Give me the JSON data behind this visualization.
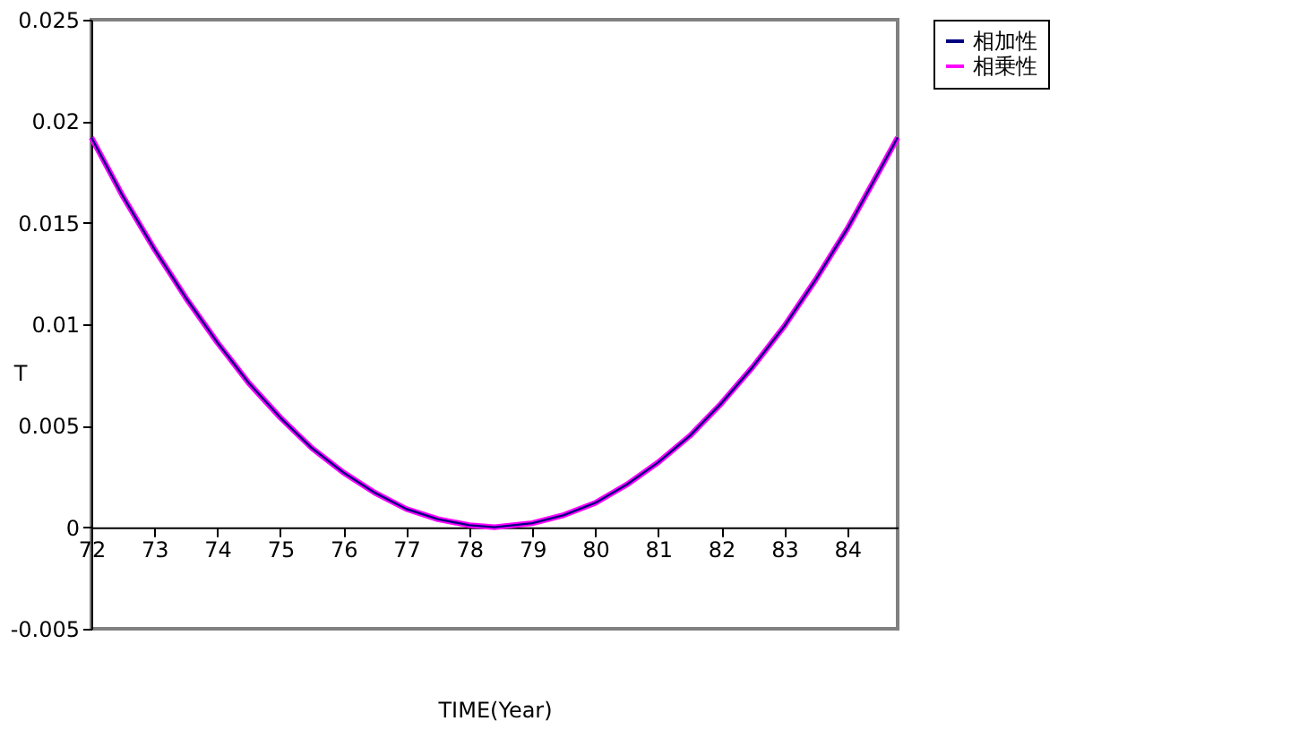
{
  "chart_data": {
    "type": "line",
    "xlabel": "TIME(Year)",
    "ylabel": "T",
    "x": [
      72,
      72.5,
      73,
      73.5,
      74,
      74.5,
      75,
      75.5,
      76,
      76.5,
      77,
      77.5,
      78,
      78.4,
      79,
      79.5,
      80,
      80.5,
      81,
      81.5,
      82,
      82.5,
      83,
      83.5,
      84,
      84.5,
      84.8
    ],
    "series": [
      {
        "name": "相加性",
        "color": "#000080",
        "values": [
          0.0192,
          0.0163,
          0.0137,
          0.0113,
          0.0091,
          0.0071,
          0.0054,
          0.0039,
          0.0027,
          0.0017,
          0.0009,
          0.0004,
          0.0001,
          0,
          0.0002,
          0.0006,
          0.0012,
          0.0021,
          0.0032,
          0.0045,
          0.0061,
          0.0079,
          0.0099,
          0.0122,
          0.0147,
          0.0175,
          0.0192
        ]
      },
      {
        "name": "相乗性",
        "color": "#ff00ff",
        "values": [
          0.0192,
          0.0163,
          0.0137,
          0.0113,
          0.0091,
          0.0071,
          0.0054,
          0.0039,
          0.0027,
          0.0017,
          0.0009,
          0.0004,
          0.0001,
          0,
          0.0002,
          0.0006,
          0.0012,
          0.0021,
          0.0032,
          0.0045,
          0.0061,
          0.0079,
          0.0099,
          0.0122,
          0.0147,
          0.0175,
          0.0192
        ]
      }
    ],
    "xlim": [
      72,
      84.8
    ],
    "xticks": [
      72,
      73,
      74,
      75,
      76,
      77,
      78,
      79,
      80,
      81,
      82,
      83,
      84
    ],
    "ylim": [
      -0.005,
      0.025
    ],
    "yticks": [
      -0.005,
      0,
      0.005,
      0.01,
      0.015,
      0.02,
      0.025
    ],
    "grid": false,
    "legend": "right",
    "marker": "none",
    "line_style": "solid"
  }
}
